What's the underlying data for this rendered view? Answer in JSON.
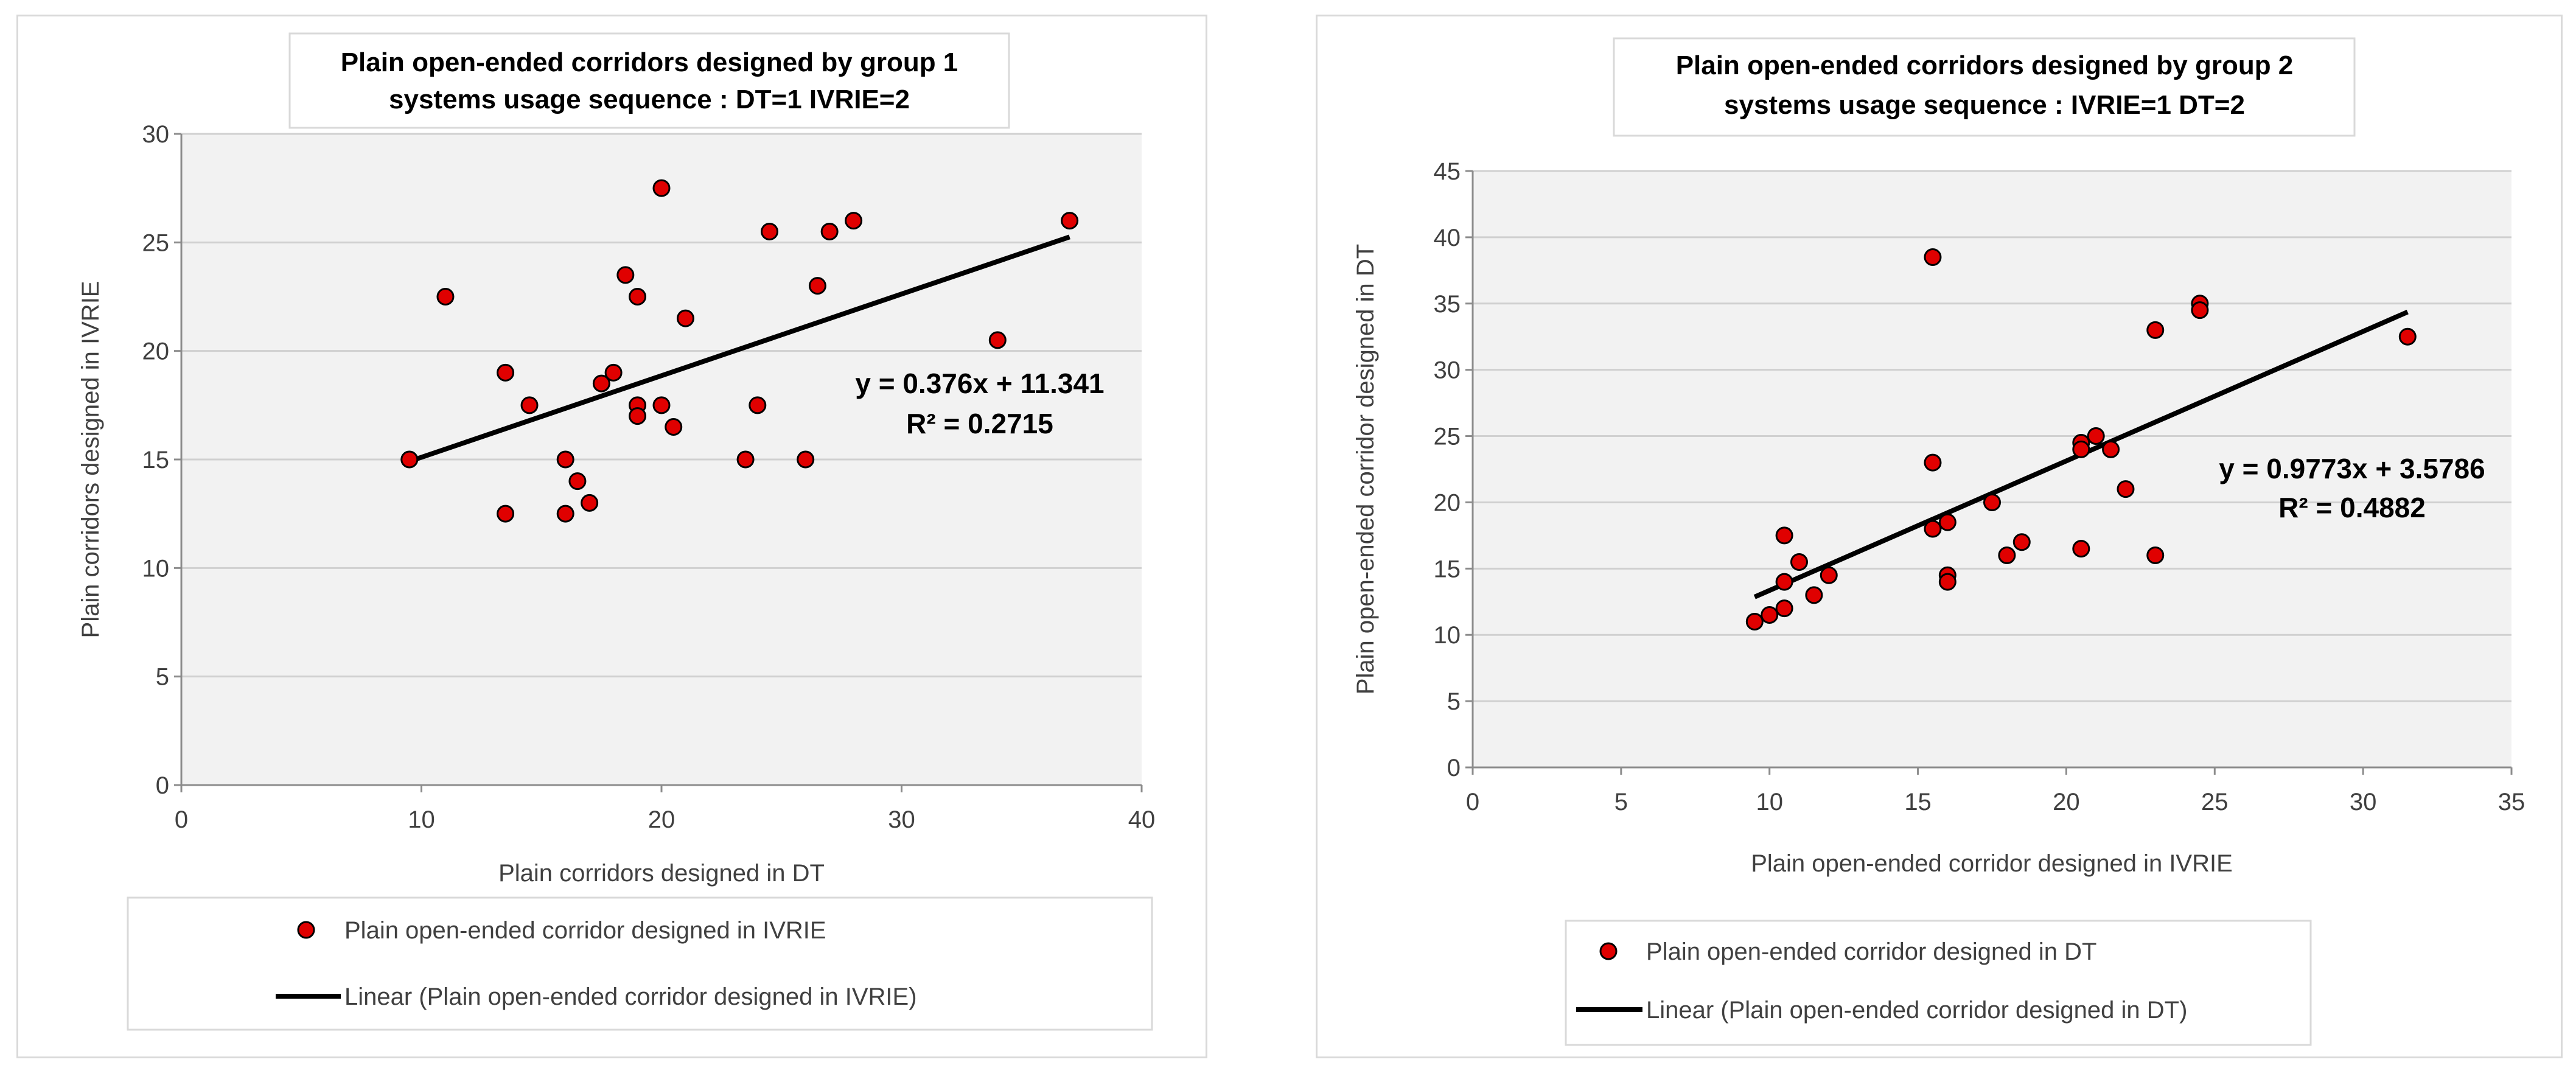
{
  "chart_data": [
    {
      "type": "scatter",
      "title_lines": [
        "Plain open-ended corridors designed by group 1",
        "systems usage sequence : DT=1  IVRIE=2"
      ],
      "xlabel": "Plain  corridors designed in DT",
      "ylabel": "Plain corridors designed in IVRIE",
      "xlim": [
        0,
        40
      ],
      "ylim": [
        0,
        30
      ],
      "xticks": [
        0,
        10,
        20,
        30,
        40
      ],
      "yticks": [
        0,
        5,
        10,
        15,
        20,
        25,
        30
      ],
      "grid": true,
      "series": [
        {
          "name": "Plain open-ended corridor designed in IVRIE",
          "marker": "circle",
          "color": "#e00000",
          "points": [
            [
              9.5,
              15
            ],
            [
              11,
              22.5
            ],
            [
              13.5,
              19
            ],
            [
              13.5,
              12.5
            ],
            [
              14.5,
              17.5
            ],
            [
              16,
              15
            ],
            [
              16,
              12.5
            ],
            [
              16.5,
              14
            ],
            [
              17,
              13
            ],
            [
              17.5,
              18.5
            ],
            [
              18,
              19
            ],
            [
              18.5,
              23.5
            ],
            [
              19,
              22.5
            ],
            [
              19,
              17.5
            ],
            [
              19,
              17
            ],
            [
              20,
              27.5
            ],
            [
              20,
              17.5
            ],
            [
              20.5,
              16.5
            ],
            [
              21,
              21.5
            ],
            [
              23.5,
              15
            ],
            [
              24,
              17.5
            ],
            [
              24.5,
              25.5
            ],
            [
              26,
              15
            ],
            [
              26.5,
              23
            ],
            [
              27,
              25.5
            ],
            [
              28,
              26
            ],
            [
              34,
              20.5
            ],
            [
              37,
              26
            ]
          ]
        }
      ],
      "trendline": {
        "name": "Linear (Plain open-ended corridor designed in IVRIE)",
        "slope": 0.376,
        "intercept": 11.341,
        "x_range": [
          9.5,
          37
        ],
        "equation": "y = 0.376x + 11.341",
        "r2": "R² = 0.2715"
      },
      "legend_position": "bottom"
    },
    {
      "type": "scatter",
      "title_lines": [
        "Plain open-ended corridors designed by group 2",
        "systems usage sequence : IVRIE=1 DT=2"
      ],
      "xlabel": "Plain open-ended corridor designed in IVRIE",
      "ylabel": "Plain open-ended corridor designed in DT",
      "xlim": [
        0,
        35
      ],
      "ylim": [
        0,
        45
      ],
      "xticks": [
        0,
        5,
        10,
        15,
        20,
        25,
        30,
        35
      ],
      "yticks": [
        0,
        5,
        10,
        15,
        20,
        25,
        30,
        35,
        40,
        45
      ],
      "grid": true,
      "series": [
        {
          "name": "Plain open-ended corridor designed in DT",
          "marker": "circle",
          "color": "#e00000",
          "points": [
            [
              9.5,
              11
            ],
            [
              10,
              11.5
            ],
            [
              10.5,
              12
            ],
            [
              10.5,
              14
            ],
            [
              10.5,
              17.5
            ],
            [
              11,
              15.5
            ],
            [
              11.5,
              13
            ],
            [
              12,
              14.5
            ],
            [
              15.5,
              38.5
            ],
            [
              15.5,
              23
            ],
            [
              15.5,
              18
            ],
            [
              16,
              18.5
            ],
            [
              16,
              14.5
            ],
            [
              16,
              14
            ],
            [
              17.5,
              20
            ],
            [
              18,
              16
            ],
            [
              18.5,
              17
            ],
            [
              20.5,
              24.5
            ],
            [
              20.5,
              24
            ],
            [
              20.5,
              16.5
            ],
            [
              21,
              25
            ],
            [
              21.5,
              24
            ],
            [
              22,
              21
            ],
            [
              23,
              33
            ],
            [
              23,
              16
            ],
            [
              24.5,
              35
            ],
            [
              24.5,
              34.5
            ],
            [
              31.5,
              32.5
            ]
          ]
        }
      ],
      "trendline": {
        "name": "Linear (Plain open-ended corridor designed in DT)",
        "slope": 0.9773,
        "intercept": 3.5786,
        "x_range": [
          9.5,
          31.5
        ],
        "equation": "y = 0.9773x + 3.5786",
        "r2": "R² = 0.4882"
      },
      "legend_position": "bottom"
    }
  ]
}
